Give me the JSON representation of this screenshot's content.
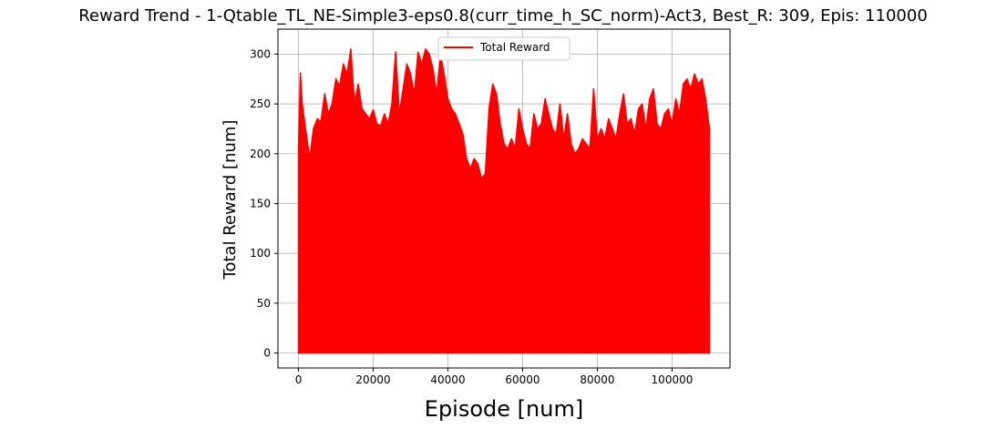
{
  "chart_data": {
    "type": "line",
    "title": "Reward Trend - 1-Qtable_TL_NE-Simple3-eps0.8(curr_time_h_SC_norm)-Act3, Best_R: 309, Epis: 110000",
    "xlabel": "Episode [num]",
    "ylabel": "Total Reward [num]",
    "xlim": [
      -5500,
      115500
    ],
    "ylim": [
      -15,
      325
    ],
    "x_ticks": [
      0,
      20000,
      40000,
      60000,
      80000,
      100000
    ],
    "y_ticks": [
      0,
      50,
      100,
      150,
      200,
      250,
      300
    ],
    "grid": true,
    "legend_position": "upper center",
    "series": [
      {
        "name": "Total Reward",
        "color": "#ff0000",
        "min_value": 0,
        "envelope_x": [
          0,
          500,
          1000,
          2000,
          3000,
          4000,
          5000,
          6000,
          7000,
          8000,
          9000,
          10000,
          11000,
          12000,
          13000,
          14000,
          15000,
          16000,
          17000,
          18000,
          19000,
          20000,
          21000,
          22000,
          23000,
          24000,
          25000,
          26000,
          27000,
          28000,
          29000,
          30000,
          31000,
          32000,
          33000,
          34000,
          35000,
          36000,
          37000,
          38000,
          39000,
          40000,
          41000,
          42000,
          43000,
          44000,
          45000,
          46000,
          47000,
          48000,
          49000,
          50000,
          51000,
          52000,
          53000,
          54000,
          55000,
          56000,
          57000,
          58000,
          59000,
          60000,
          61000,
          62000,
          63000,
          64000,
          65000,
          66000,
          67000,
          68000,
          69000,
          70000,
          71000,
          72000,
          73000,
          74000,
          75000,
          76000,
          77000,
          78000,
          79000,
          80000,
          81000,
          82000,
          83000,
          84000,
          85000,
          86000,
          87000,
          88000,
          89000,
          90000,
          91000,
          92000,
          93000,
          94000,
          95000,
          96000,
          97000,
          98000,
          99000,
          100000,
          101000,
          102000,
          103000,
          104000,
          105000,
          106000,
          107000,
          108000,
          109000,
          110000
        ],
        "envelope_y": [
          205,
          281,
          250,
          222,
          195,
          225,
          235,
          232,
          260,
          240,
          250,
          275,
          268,
          290,
          280,
          305,
          250,
          270,
          245,
          240,
          235,
          244,
          230,
          228,
          240,
          230,
          250,
          302,
          240,
          265,
          290,
          280,
          260,
          302,
          290,
          305,
          300,
          285,
          260,
          300,
          280,
          255,
          245,
          240,
          230,
          220,
          195,
          185,
          195,
          190,
          175,
          180,
          245,
          270,
          260,
          230,
          210,
          205,
          215,
          205,
          245,
          225,
          210,
          205,
          240,
          225,
          230,
          255,
          240,
          225,
          220,
          250,
          215,
          240,
          210,
          200,
          205,
          215,
          210,
          205,
          265,
          215,
          225,
          215,
          235,
          225,
          215,
          240,
          260,
          230,
          235,
          220,
          245,
          250,
          225,
          255,
          265,
          230,
          225,
          240,
          245,
          230,
          255,
          240,
          270,
          275,
          265,
          280,
          270,
          275,
          255,
          225,
          165
        ]
      }
    ]
  }
}
